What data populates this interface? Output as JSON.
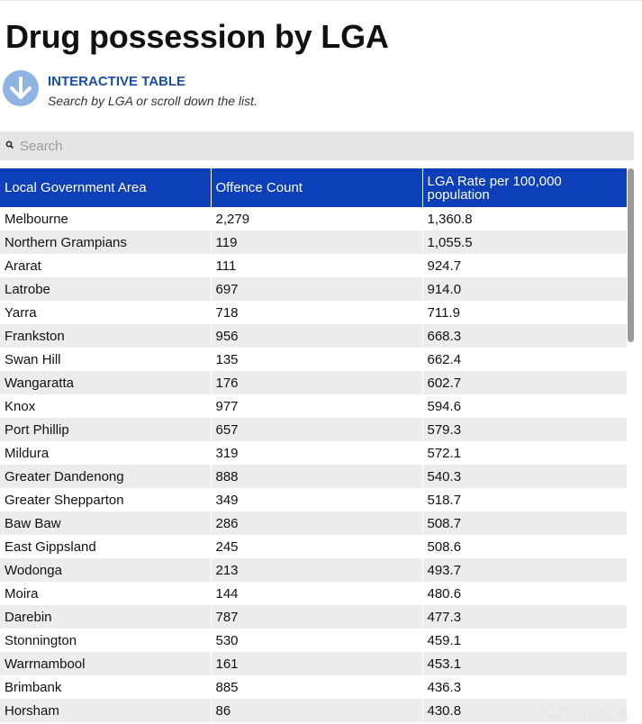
{
  "title": "Drug possession by LGA",
  "intro": {
    "icon": "arrow-down-icon",
    "heading": "INTERACTIVE TABLE",
    "subtext": "Search by LGA or scroll down the list."
  },
  "search": {
    "icon": "search-icon",
    "placeholder": "Search",
    "value": ""
  },
  "table": {
    "headers": [
      "Local Government Area",
      "Offence Count",
      "LGA Rate per 100,000 population"
    ],
    "rows": [
      [
        "Melbourne",
        "2,279",
        "1,360.8"
      ],
      [
        "Northern Grampians",
        "119",
        "1,055.5"
      ],
      [
        "Ararat",
        "111",
        "924.7"
      ],
      [
        "Latrobe",
        "697",
        "914.0"
      ],
      [
        "Yarra",
        "718",
        "711.9"
      ],
      [
        "Frankston",
        "956",
        "668.3"
      ],
      [
        "Swan Hill",
        "135",
        "662.4"
      ],
      [
        "Wangaratta",
        "176",
        "602.7"
      ],
      [
        "Knox",
        "977",
        "594.6"
      ],
      [
        "Port Phillip",
        "657",
        "579.3"
      ],
      [
        "Mildura",
        "319",
        "572.1"
      ],
      [
        "Greater Dandenong",
        "888",
        "540.3"
      ],
      [
        "Greater Shepparton",
        "349",
        "518.7"
      ],
      [
        "Baw Baw",
        "286",
        "508.7"
      ],
      [
        "East Gippsland",
        "245",
        "508.6"
      ],
      [
        "Wodonga",
        "213",
        "493.7"
      ],
      [
        "Moira",
        "144",
        "480.6"
      ],
      [
        "Darebin",
        "787",
        "477.3"
      ],
      [
        "Stonnington",
        "530",
        "459.1"
      ],
      [
        "Warrnambool",
        "161",
        "453.1"
      ],
      [
        "Brimbank",
        "885",
        "436.3"
      ],
      [
        "Horsham",
        "86",
        "430.8"
      ]
    ]
  },
  "watermark": "Chi na2a",
  "colors": {
    "header_bg": "#0c3fb8",
    "accent_text": "#1a4fa6",
    "icon_circle": "#8fb3e3",
    "row_alt": "#ececec"
  }
}
